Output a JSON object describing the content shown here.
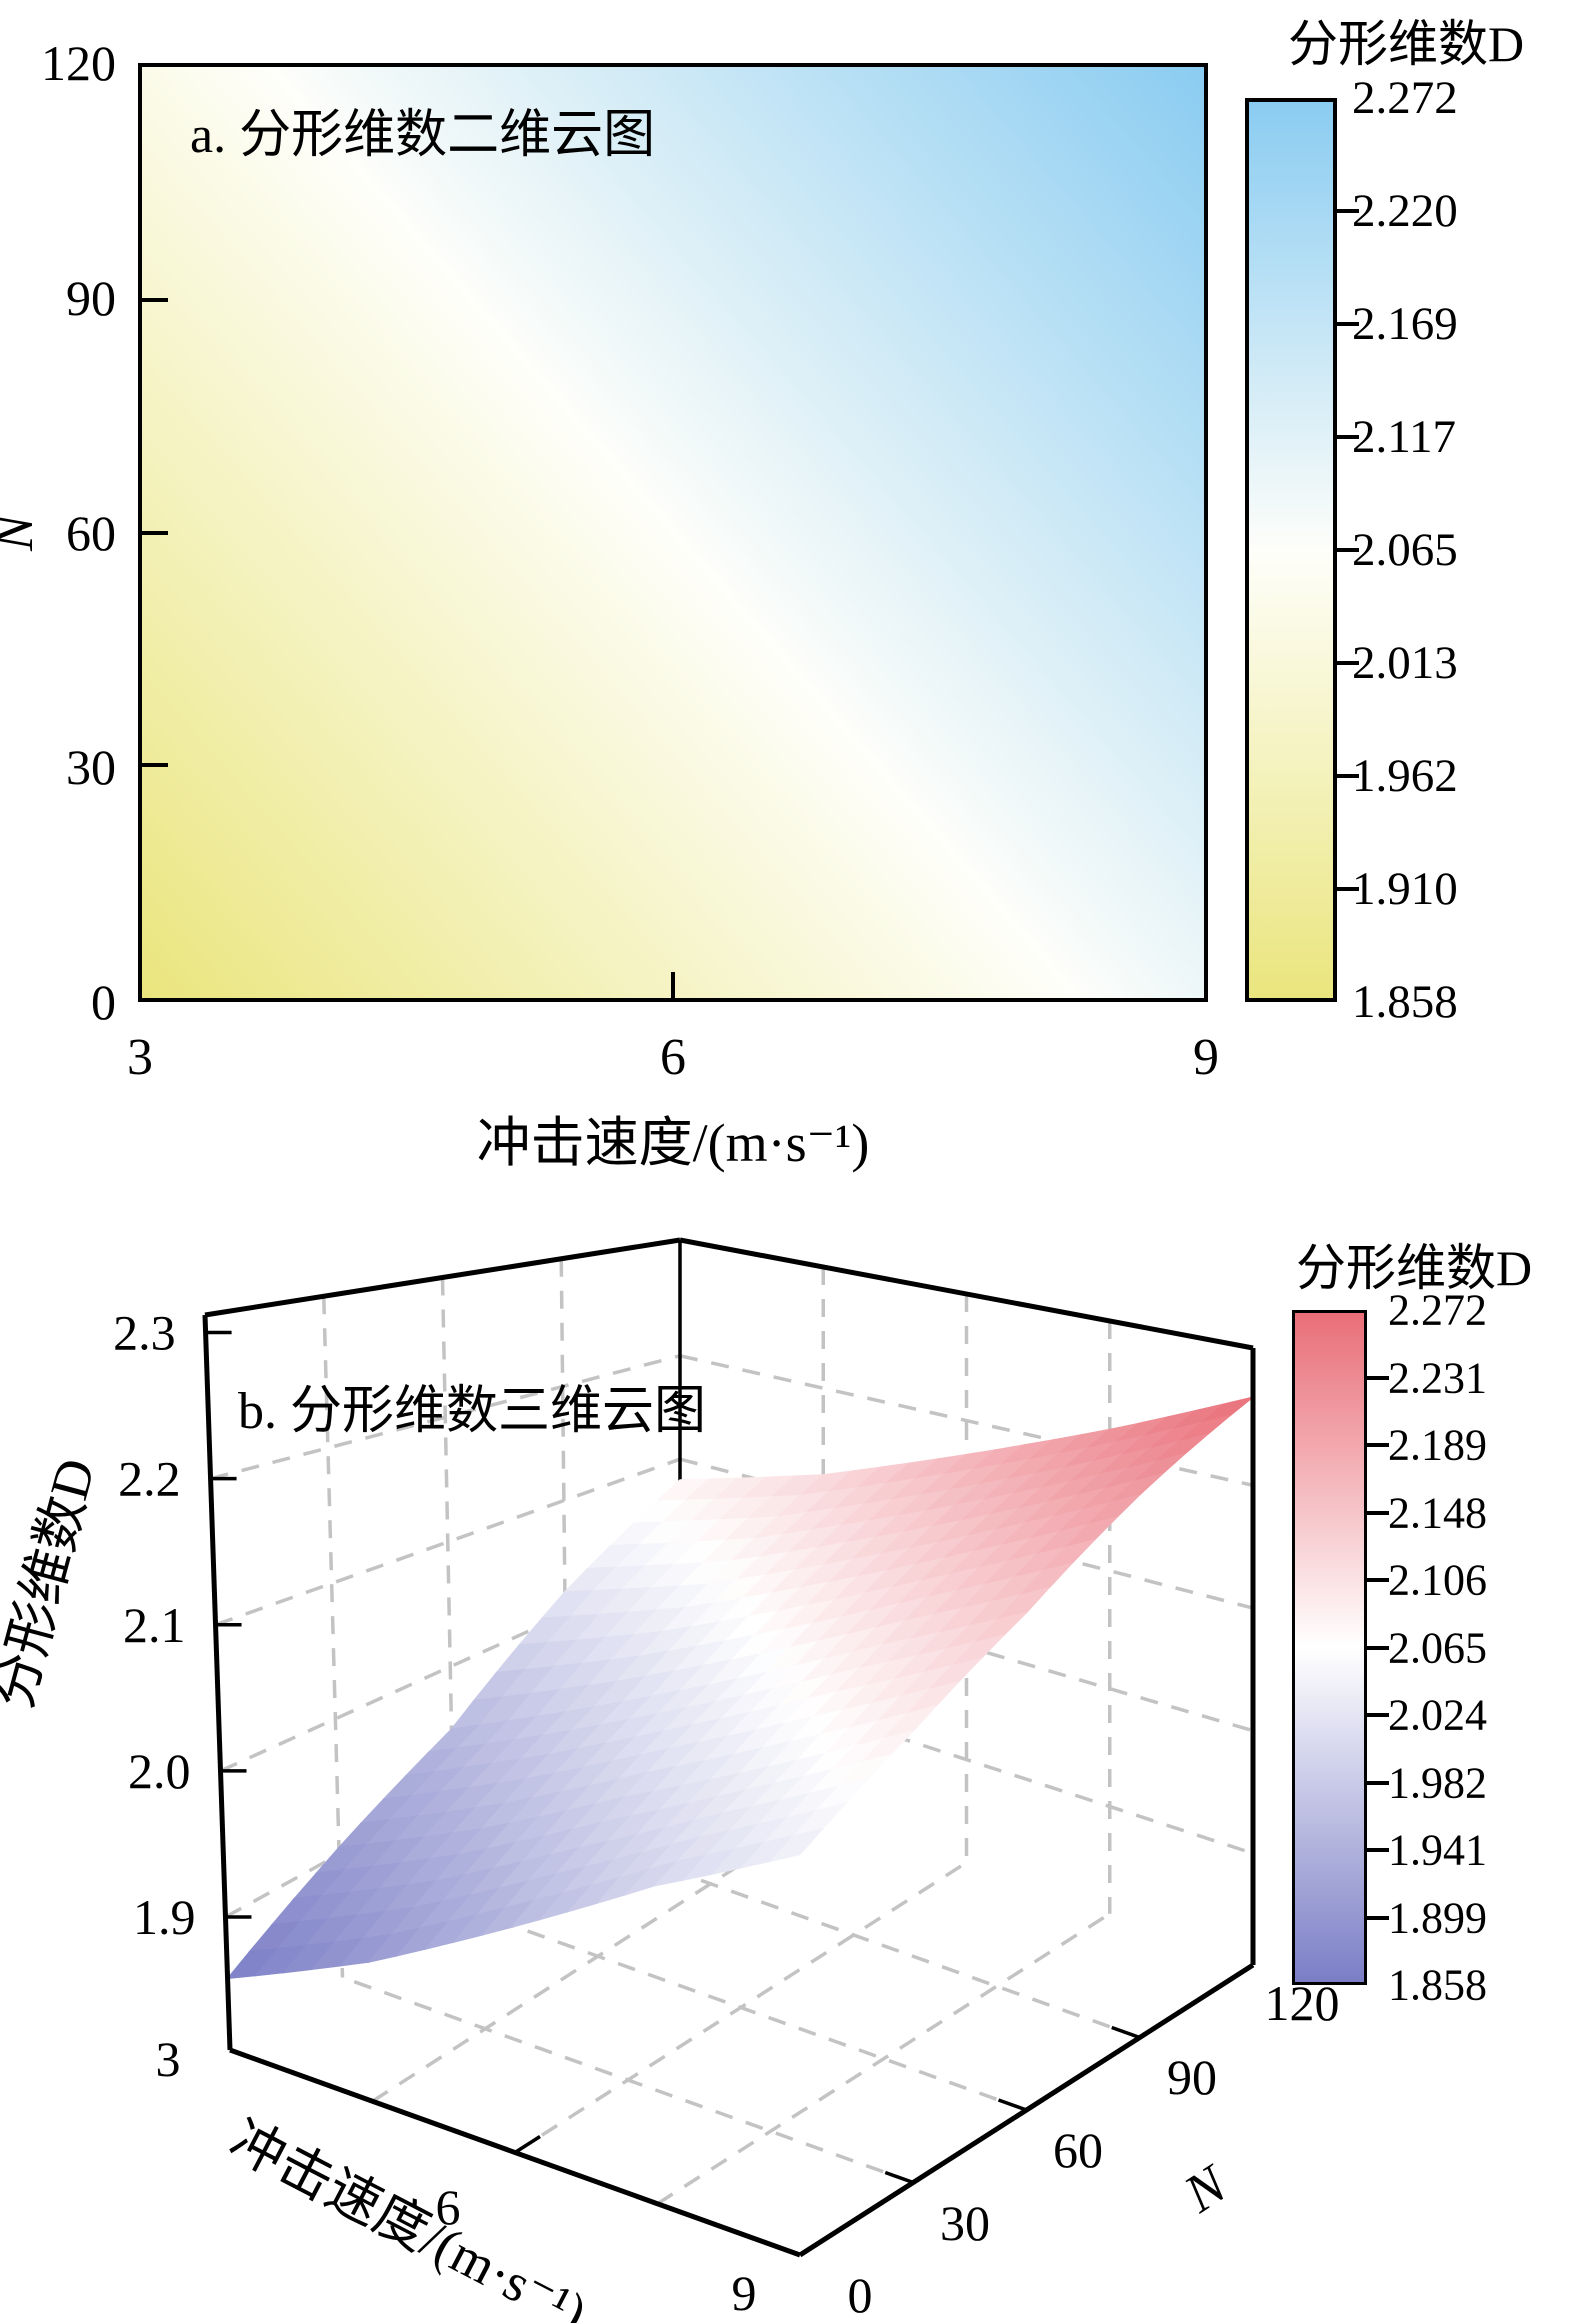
{
  "page": {
    "background": "#ffffff"
  },
  "colors": {
    "panel_a_low": "#eae57e",
    "panel_a_mid": "#fefefa",
    "panel_a_high": "#8accf1",
    "panel_b_low": "#7b7ec6",
    "panel_b_mid": "#ffffff",
    "panel_b_high": "#e96e78",
    "axis": "#000000",
    "grid_dash": "#c3c3c3"
  },
  "panel_a": {
    "title": "a. 分形维数二维云图",
    "xlabel": "冲击速度/(m·s⁻¹)",
    "ylabel": "N",
    "x_ticks": [
      "3",
      "6",
      "9"
    ],
    "y_ticks": [
      "0",
      "30",
      "60",
      "90",
      "120"
    ],
    "colorbar": {
      "title": "分形维数D",
      "labels": [
        "2.272",
        "2.220",
        "2.169",
        "2.117",
        "2.065",
        "2.013",
        "1.962",
        "1.910",
        "1.858"
      ]
    }
  },
  "panel_b": {
    "title": "b. 分形维数三维云图",
    "xlabel": "冲击速度/(m·s⁻¹)",
    "nlabel": "N",
    "zlabel": "分形维数D",
    "z_ticks": [
      "2.3",
      "2.2",
      "2.1",
      "2.0",
      "1.9"
    ],
    "x_ticks": [
      "3",
      "6",
      "9"
    ],
    "n_ticks": [
      "0",
      "30",
      "60",
      "90",
      "120"
    ],
    "colorbar": {
      "title": "分形维数D",
      "labels": [
        "2.272",
        "2.231",
        "2.189",
        "2.148",
        "2.106",
        "2.065",
        "2.024",
        "1.982",
        "1.941",
        "1.899",
        "1.858"
      ]
    }
  },
  "chart_data": [
    {
      "type": "heatmap",
      "title": "a. 分形维数二维云图",
      "xlabel": "冲击速度/(m·s⁻¹)",
      "ylabel": "N",
      "x": [
        3,
        4.5,
        6,
        7.5,
        9
      ],
      "y": [
        0,
        30,
        60,
        90,
        120
      ],
      "values_note": "values[y_index][x_index] = 分形维数 D",
      "values": [
        [
          1.858,
          1.9,
          1.95,
          2.0,
          2.04
        ],
        [
          1.905,
          1.95,
          2.0,
          2.045,
          2.09
        ],
        [
          1.95,
          2.0,
          2.05,
          2.1,
          2.145
        ],
        [
          2.02,
          2.06,
          2.11,
          2.16,
          2.21
        ],
        [
          2.08,
          2.12,
          2.17,
          2.22,
          2.272
        ]
      ],
      "zlim": [
        1.858,
        2.272
      ],
      "colormap": "yellow(low) → white → light blue(high)",
      "colorbar_title": "分形维数D",
      "colorbar_ticks": [
        2.272,
        2.22,
        2.169,
        2.117,
        2.065,
        2.013,
        1.962,
        1.91,
        1.858
      ],
      "legend_position": "right",
      "grid": false
    },
    {
      "type": "heatmap",
      "rendered_as": "3d_surface",
      "title": "b. 分形维数三维云图",
      "xlabel": "冲击速度/(m·s⁻¹)",
      "ylabel": "N",
      "zlabel": "分形维数D",
      "x": [
        3,
        4.5,
        6,
        7.5,
        9
      ],
      "y": [
        0,
        30,
        60,
        90,
        120
      ],
      "values_note": "values[y_index][x_index] = 分形维数 D",
      "values": [
        [
          1.858,
          1.9,
          1.95,
          2.0,
          2.04
        ],
        [
          1.905,
          1.95,
          2.0,
          2.045,
          2.09
        ],
        [
          1.95,
          2.0,
          2.05,
          2.1,
          2.145
        ],
        [
          2.02,
          2.06,
          2.11,
          2.16,
          2.21
        ],
        [
          2.08,
          2.12,
          2.17,
          2.22,
          2.272
        ]
      ],
      "zlim": [
        1.858,
        2.272
      ],
      "z_axis_ticks": [
        1.9,
        2.0,
        2.1,
        2.2,
        2.3
      ],
      "colormap": "blue-purple(low) → white → red(high)",
      "colorbar_title": "分形维数D",
      "colorbar_ticks": [
        2.272,
        2.231,
        2.189,
        2.148,
        2.106,
        2.065,
        2.024,
        1.982,
        1.941,
        1.899,
        1.858
      ],
      "legend_position": "right",
      "grid": "dashed gray wall and floor gridlines"
    }
  ]
}
